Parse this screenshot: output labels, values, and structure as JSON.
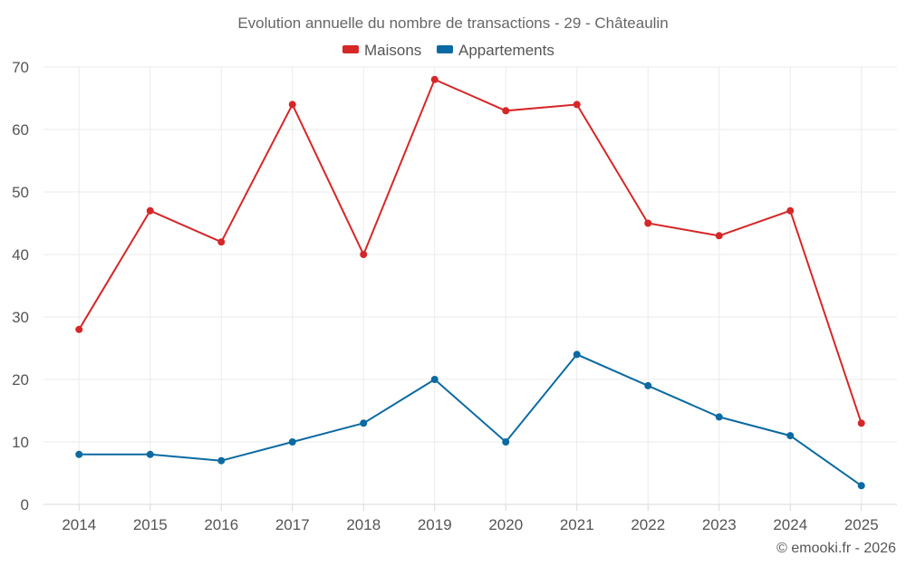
{
  "chart_data": {
    "type": "line",
    "title": "Evolution annuelle du nombre de transactions - 29 - Châteaulin",
    "categories": [
      "2014",
      "2015",
      "2016",
      "2017",
      "2018",
      "2019",
      "2020",
      "2021",
      "2022",
      "2023",
      "2024",
      "2025"
    ],
    "series": [
      {
        "name": "Maisons",
        "color": "#d62728",
        "values": [
          28,
          47,
          42,
          64,
          40,
          68,
          63,
          64,
          45,
          43,
          47,
          13
        ]
      },
      {
        "name": "Appartements",
        "color": "#0b6aa2",
        "values": [
          8,
          8,
          7,
          10,
          13,
          20,
          10,
          24,
          19,
          14,
          11,
          3
        ]
      }
    ],
    "ylim": [
      0,
      70
    ],
    "yticks": [
      0,
      10,
      20,
      30,
      40,
      50,
      60,
      70
    ],
    "xlabel": "",
    "ylabel": "",
    "legend": "top-center",
    "grid": true
  },
  "credit": "© emooki.fr - 2026"
}
